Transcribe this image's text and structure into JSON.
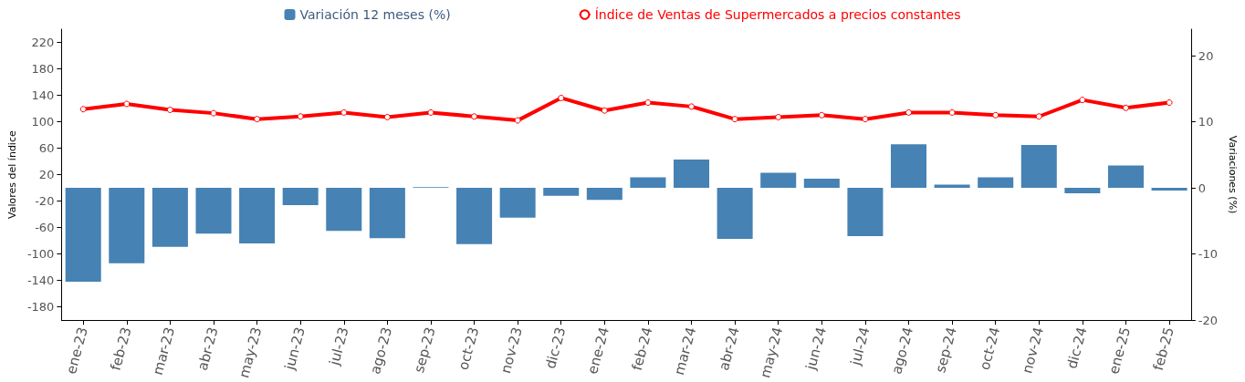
{
  "chart_data": {
    "type": "bar",
    "ylabel": "Valores del índice",
    "y2label": "Variaciones (%)",
    "categories": [
      "ene-23",
      "feb-23",
      "mar-23",
      "abr-23",
      "may-23",
      "jun-23",
      "jul-23",
      "ago-23",
      "sep-23",
      "oct-23",
      "nov-23",
      "dic-23",
      "ene-24",
      "feb-24",
      "mar-24",
      "abr-24",
      "may-24",
      "jun-24",
      "jul-24",
      "ago-24",
      "sep-24",
      "oct-24",
      "nov-24",
      "dic-24",
      "ene-25",
      "feb-25"
    ],
    "series": [
      {
        "name": "Variación 12 meses (%)",
        "axis": "y2",
        "color": "#4682b4",
        "values": [
          -14.2,
          -11.4,
          -8.9,
          -6.9,
          -8.4,
          -2.6,
          -6.5,
          -7.6,
          0.1,
          -8.5,
          -4.5,
          -1.2,
          -1.8,
          1.6,
          4.3,
          -7.7,
          2.3,
          1.4,
          -7.3,
          6.6,
          0.5,
          1.6,
          6.5,
          -0.8,
          3.4,
          -0.4
        ]
      },
      {
        "name": "Índice de Ventas de Supermercados a precios constantes",
        "type": "line",
        "axis": "y",
        "color": "#ff0000",
        "marker": "circle",
        "values": [
          119,
          127,
          118,
          113,
          104,
          108,
          114,
          107,
          114,
          108,
          102,
          136,
          117,
          129,
          123,
          104,
          107,
          110,
          104,
          114,
          114,
          110,
          108,
          133,
          121,
          129
        ]
      }
    ],
    "ylim": [
      -200,
      240
    ],
    "yticks": [
      -180,
      -140,
      -100,
      -60,
      -20,
      20,
      60,
      100,
      140,
      180,
      220
    ],
    "y2lim": [
      -20,
      24
    ],
    "y2ticks": [
      -20,
      -10,
      0,
      10,
      20
    ],
    "grid": false,
    "legend": "top"
  }
}
